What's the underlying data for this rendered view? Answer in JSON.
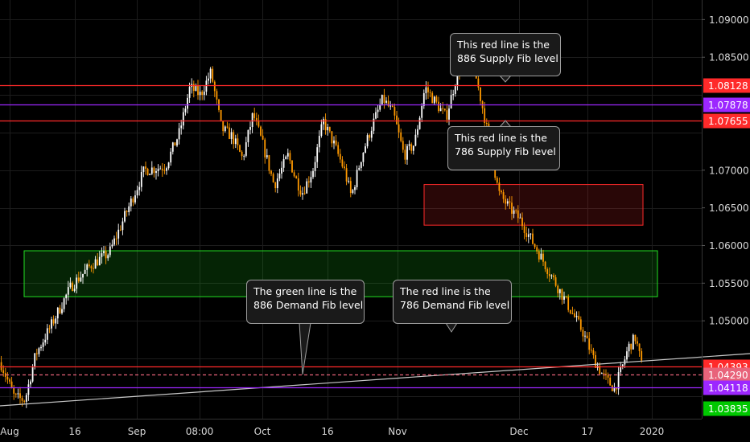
{
  "chart_data": {
    "type": "candlestick",
    "y_range": [
      1.037,
      1.0926
    ],
    "y_axis_ticks": [
      "1.09000",
      "1.08500",
      "1.07000",
      "1.06500",
      "1.06000",
      "1.05500",
      "1.05000"
    ],
    "x_axis_ticks": [
      "Aug",
      "16",
      "Sep",
      "08:00",
      "Oct",
      "16",
      "Nov",
      "Dec",
      "17",
      "2020"
    ],
    "horizontal_levels": [
      {
        "price": 1.08128,
        "label": "1.08128",
        "color": "#ff2a2a"
      },
      {
        "price": 1.07878,
        "label": "1.07878",
        "color": "#9c27ff"
      },
      {
        "price": 1.07655,
        "label": "1.07655",
        "color": "#ff2a2a"
      },
      {
        "price": 1.04393,
        "label": "1.04393",
        "color": "#ff2a2a"
      },
      {
        "price": 1.0429,
        "label": "1.04290",
        "color": "#e8637a",
        "dashed": true
      },
      {
        "price": 1.04118,
        "label": "1.04118",
        "color": "#9c27ff"
      },
      {
        "price": 1.03835,
        "label": "1.03835",
        "color": "#00c800"
      }
    ],
    "zones": [
      {
        "type": "supply",
        "price_top": 1.0681,
        "price_bottom": 1.0627,
        "color": "#ff2a2a"
      },
      {
        "type": "demand",
        "price_top": 1.0593,
        "price_bottom": 1.0532,
        "color": "#22e022"
      }
    ],
    "price_path": [
      [
        0.0,
        1.0445
      ],
      [
        0.02,
        1.0398
      ],
      [
        0.035,
        1.0395
      ],
      [
        0.05,
        1.0455
      ],
      [
        0.07,
        1.049
      ],
      [
        0.1,
        1.0545
      ],
      [
        0.13,
        1.0575
      ],
      [
        0.155,
        1.059
      ],
      [
        0.18,
        1.0645
      ],
      [
        0.205,
        1.07
      ],
      [
        0.235,
        1.0705
      ],
      [
        0.255,
        1.075
      ],
      [
        0.27,
        1.081
      ],
      [
        0.285,
        1.08
      ],
      [
        0.3,
        1.083
      ],
      [
        0.315,
        1.0755
      ],
      [
        0.33,
        1.0745
      ],
      [
        0.345,
        1.0715
      ],
      [
        0.36,
        1.0775
      ],
      [
        0.375,
        1.073
      ],
      [
        0.39,
        1.068
      ],
      [
        0.41,
        1.072
      ],
      [
        0.42,
        1.069
      ],
      [
        0.43,
        1.067
      ],
      [
        0.445,
        1.07
      ],
      [
        0.46,
        1.0765
      ],
      [
        0.475,
        1.0735
      ],
      [
        0.49,
        1.07
      ],
      [
        0.5,
        1.0665
      ],
      [
        0.515,
        1.072
      ],
      [
        0.53,
        1.076
      ],
      [
        0.545,
        1.0795
      ],
      [
        0.56,
        1.0775
      ],
      [
        0.575,
        1.072
      ],
      [
        0.59,
        1.0735
      ],
      [
        0.605,
        1.081
      ],
      [
        0.62,
        1.079
      ],
      [
        0.635,
        1.077
      ],
      [
        0.65,
        1.0825
      ],
      [
        0.665,
        1.086
      ],
      [
        0.675,
        1.0835
      ],
      [
        0.69,
        1.077
      ],
      [
        0.7,
        1.072
      ],
      [
        0.71,
        1.067
      ],
      [
        0.725,
        1.065
      ],
      [
        0.74,
        1.0635
      ],
      [
        0.755,
        1.061
      ],
      [
        0.77,
        1.0585
      ],
      [
        0.785,
        1.056
      ],
      [
        0.8,
        1.0535
      ],
      [
        0.815,
        1.051
      ],
      [
        0.83,
        1.0485
      ],
      [
        0.845,
        1.045
      ],
      [
        0.86,
        1.0425
      ],
      [
        0.875,
        1.041
      ],
      [
        0.885,
        1.0435
      ],
      [
        0.895,
        1.0465
      ],
      [
        0.905,
        1.0478
      ],
      [
        0.915,
        1.0435
      ]
    ]
  },
  "annotations": [
    {
      "id": "886-supply",
      "lines": [
        "This red line is the",
        "886 Supply Fib level"
      ]
    },
    {
      "id": "786-supply",
      "lines": [
        "This red line is the",
        "786 Supply Fib level"
      ]
    },
    {
      "id": "886-demand",
      "lines": [
        "The green line is the",
        "886 Demand Fib level"
      ]
    },
    {
      "id": "786-demand",
      "lines": [
        "The red line is the",
        "786 Demand Fib level"
      ]
    }
  ],
  "colors": {
    "background": "#000000",
    "candle_up": "#ffffff",
    "candle_down": "#ff9900",
    "grid": "#1c1c1c",
    "axis_text": "#d8d8d8",
    "trendline": "#c8c8c8"
  }
}
